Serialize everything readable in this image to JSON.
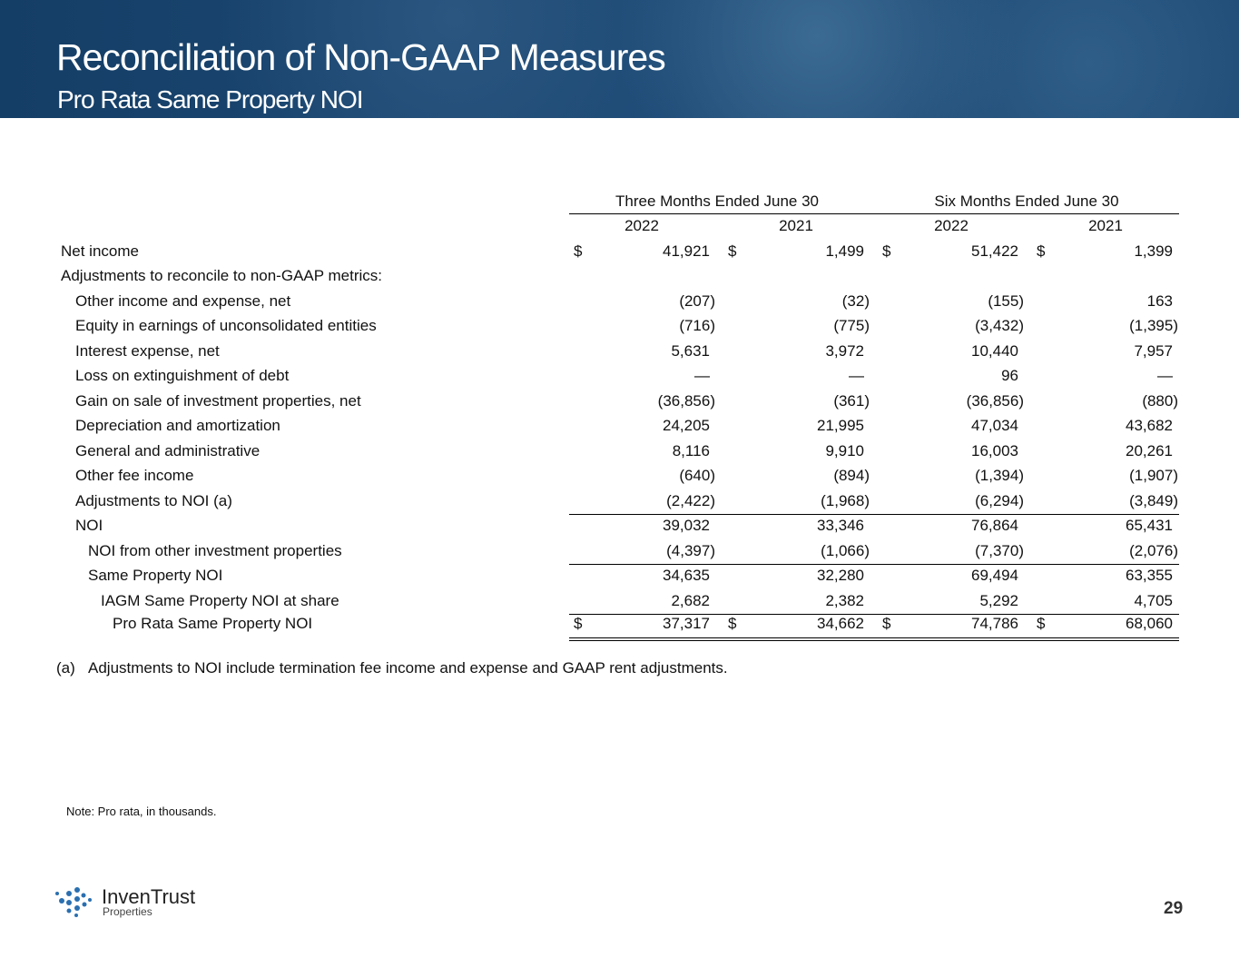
{
  "header": {
    "title": "Reconciliation of Non-GAAP Measures",
    "subtitle": "Pro Rata Same Property NOI"
  },
  "table": {
    "groups": [
      "Three Months Ended June 30",
      "Six Months Ended June 30"
    ],
    "years": [
      "2022",
      "2021",
      "2022",
      "2021"
    ],
    "currency": "$",
    "rows": [
      {
        "label": "Net income",
        "values": [
          "41,921",
          "1,499",
          "51,422",
          "1,399"
        ],
        "currency": true
      },
      {
        "label": "Adjustments to reconcile to non-GAAP metrics:",
        "values": []
      },
      {
        "label": "Other income and expense, net",
        "values": [
          "(207)",
          "(32)",
          "(155)",
          "163"
        ]
      },
      {
        "label": "Equity in earnings of unconsolidated entities",
        "values": [
          "(716)",
          "(775)",
          "(3,432)",
          "(1,395)"
        ]
      },
      {
        "label": "Interest expense, net",
        "values": [
          "5,631",
          "3,972",
          "10,440",
          "7,957"
        ]
      },
      {
        "label": "Loss on extinguishment of debt",
        "values": [
          "—",
          "—",
          "96",
          "—"
        ]
      },
      {
        "label": "Gain on sale of investment properties, net",
        "values": [
          "(36,856)",
          "(361)",
          "(36,856)",
          "(880)"
        ]
      },
      {
        "label": "Depreciation and amortization",
        "values": [
          "24,205",
          "21,995",
          "47,034",
          "43,682"
        ]
      },
      {
        "label": "General and administrative",
        "values": [
          "8,116",
          "9,910",
          "16,003",
          "20,261"
        ]
      },
      {
        "label": "Other fee income",
        "values": [
          "(640)",
          "(894)",
          "(1,394)",
          "(1,907)"
        ]
      },
      {
        "label": "Adjustments to NOI (a)",
        "values": [
          "(2,422)",
          "(1,968)",
          "(6,294)",
          "(3,849)"
        ]
      },
      {
        "label": "NOI",
        "values": [
          "39,032",
          "33,346",
          "76,864",
          "65,431"
        ]
      },
      {
        "label": "NOI from other investment properties",
        "values": [
          "(4,397)",
          "(1,066)",
          "(7,370)",
          "(2,076)"
        ]
      },
      {
        "label": "Same Property NOI",
        "values": [
          "34,635",
          "32,280",
          "69,494",
          "63,355"
        ]
      },
      {
        "label": "IAGM Same Property NOI at share",
        "values": [
          "2,682",
          "2,382",
          "5,292",
          "4,705"
        ]
      },
      {
        "label": "Pro Rata Same Property NOI",
        "values": [
          "37,317",
          "34,662",
          "74,786",
          "68,060"
        ],
        "currency": true
      }
    ]
  },
  "footnote": {
    "marker": "(a)",
    "text": "Adjustments to NOI include termination fee income and expense and GAAP rent adjustments."
  },
  "note": "Note: Pro rata, in thousands.",
  "logo": {
    "name": "InvenTrust",
    "sub": "Properties"
  },
  "page_number": "29"
}
